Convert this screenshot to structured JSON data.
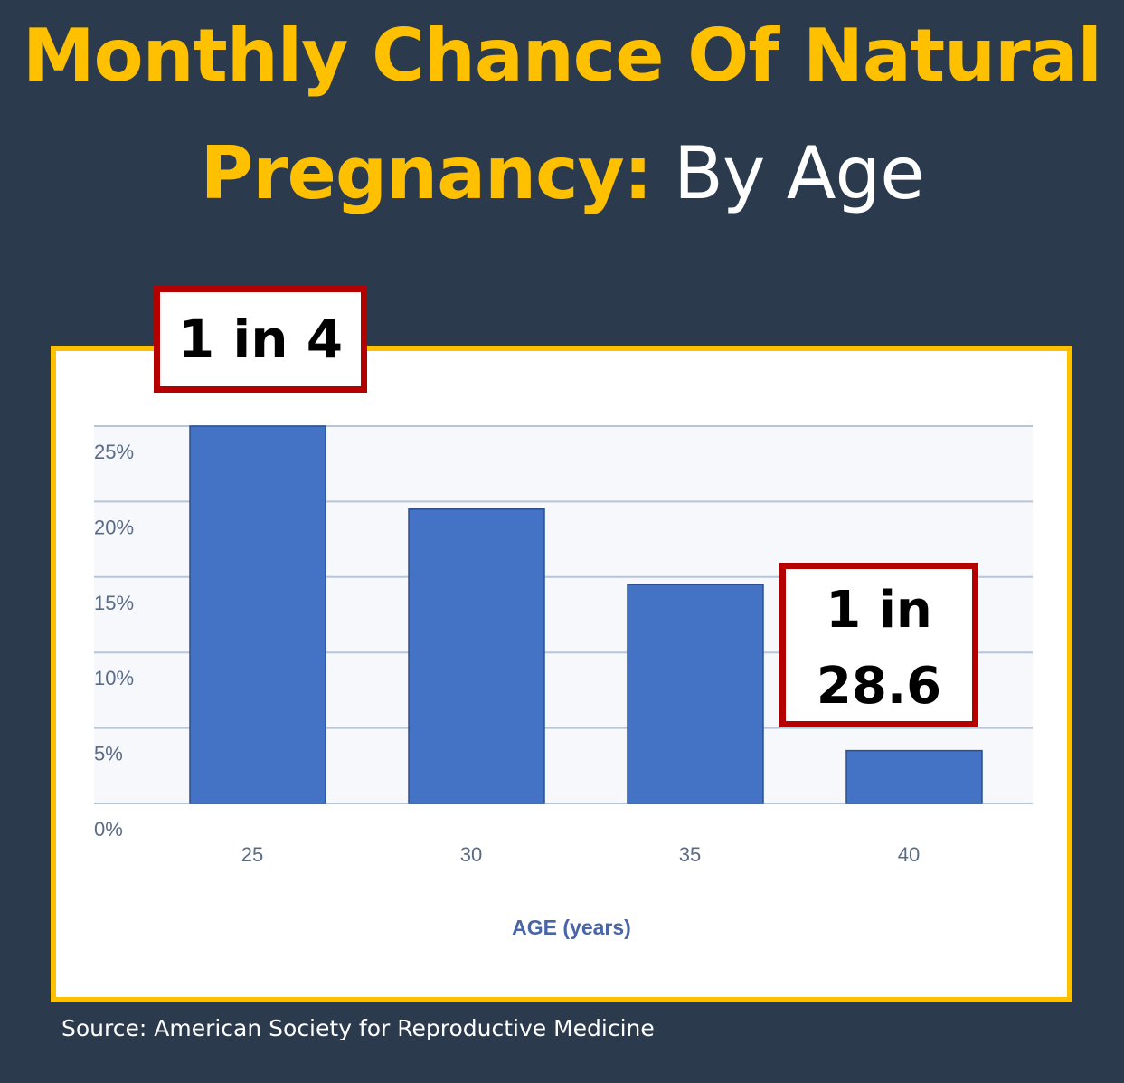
{
  "title": {
    "line1": "Monthly Chance Of Natural",
    "line2_highlight": "Pregnancy:",
    "line2_suffix": " By Age"
  },
  "colors": {
    "background": "#2b3a4d",
    "accent": "#ffc000",
    "bar": "#4472c4",
    "callout_border": "#b50000",
    "axis_text": "#5a6b85",
    "grid": "#b8c4d8"
  },
  "chart_data": {
    "type": "bar",
    "categories": [
      "25",
      "30",
      "35",
      "40"
    ],
    "values": [
      25,
      19.5,
      14.5,
      3.5
    ],
    "xlabel": "AGE (years)",
    "ylabel": "",
    "ylim": [
      0,
      25
    ],
    "yticks": [
      "0%",
      "5%",
      "10%",
      "15%",
      "20%",
      "25%"
    ],
    "grid": true
  },
  "callouts": [
    {
      "category": "25",
      "lines": [
        "1 in 4"
      ]
    },
    {
      "category": "40",
      "lines": [
        "1 in",
        "28.6"
      ]
    }
  ],
  "source": "Source: American Society for Reproductive Medicine"
}
